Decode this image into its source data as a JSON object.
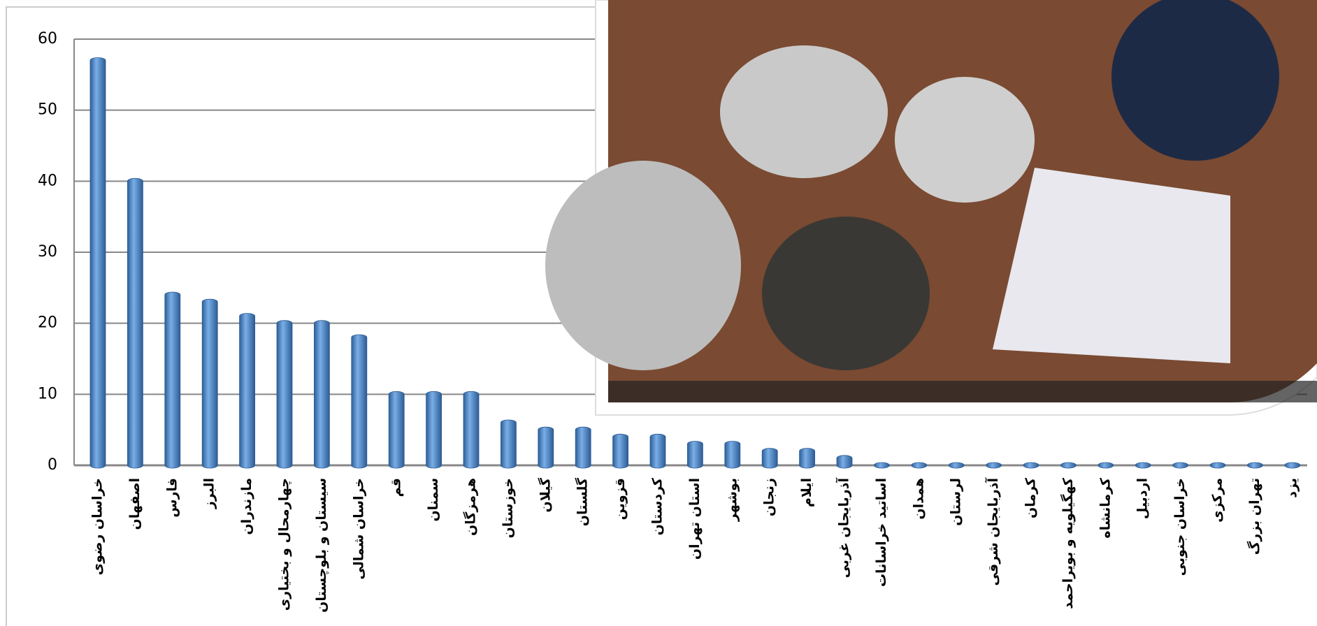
{
  "chart_data": {
    "type": "bar",
    "categories": [
      "خراسان رضوی",
      "اصفهان",
      "فارس",
      "البرز",
      "مازندران",
      "چهارمحال و بختیاری",
      "سیستان و بلوچستان",
      "خراسان شمالی",
      "قم",
      "سمنان",
      "هرمزگان",
      "خوزستان",
      "گیلان",
      "گلستان",
      "قزوین",
      "کردستان",
      "استان تهران",
      "بوشهر",
      "زنجان",
      "ایلام",
      "آذربایجان غربی",
      "اساتید خراسانات",
      "همدان",
      "لرستان",
      "آذربایجان شرقی",
      "کرمان",
      "کهگیلویه و بویراحمد",
      "کرمانشاه",
      "اردبیل",
      "خراسان جنوبی",
      "مرکزی",
      "تهران بزرگ",
      "یزد"
    ],
    "values": [
      57,
      40,
      24,
      23,
      21,
      20,
      20,
      18,
      10,
      10,
      10,
      6,
      5,
      5,
      4,
      4,
      3,
      3,
      2,
      2,
      1,
      0,
      0,
      0,
      0,
      0,
      0,
      0,
      0,
      0,
      0,
      0,
      0
    ],
    "color": "#4a86c8",
    "ylim": [
      0,
      60
    ],
    "yticks": [
      0,
      10,
      20,
      30,
      40,
      50,
      60
    ],
    "grid": true
  }
}
